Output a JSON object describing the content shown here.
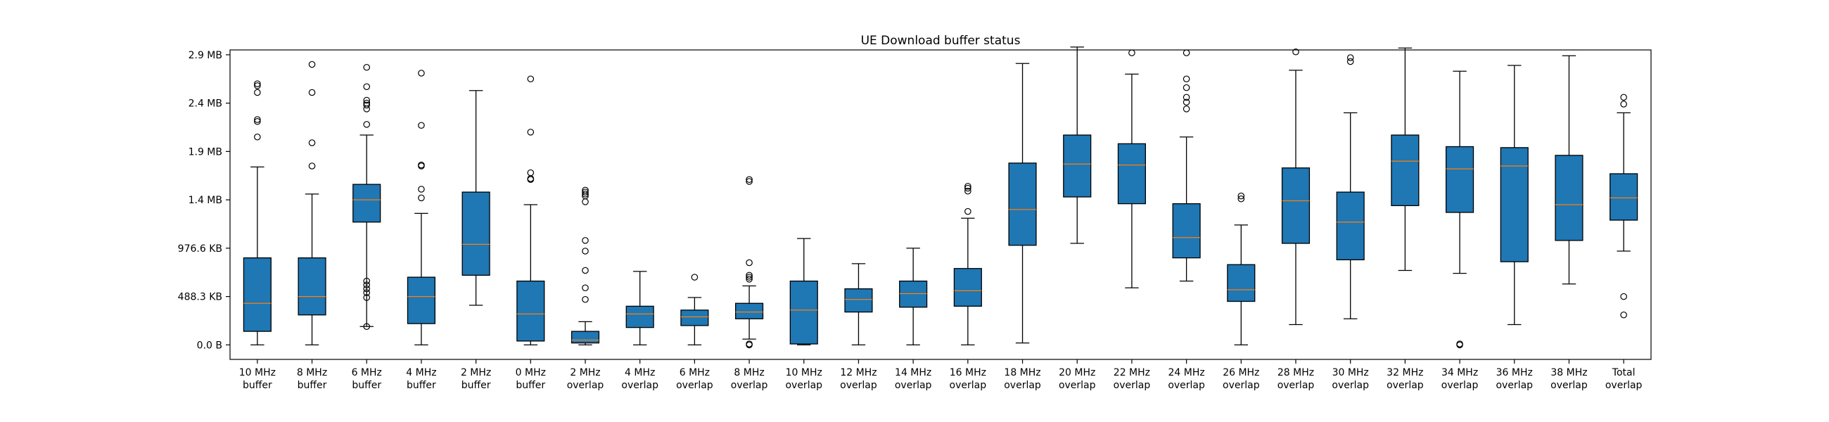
{
  "chart_data": {
    "type": "box",
    "title": "UE Download buffer status",
    "xlabel": "",
    "ylabel": "",
    "ylim": [
      -0.15,
      3.05
    ],
    "y_unit_values_in": "MB",
    "y_ticks": [
      {
        "value": 0.0,
        "label": "0.0 B"
      },
      {
        "value": 0.5,
        "label": "488.3 KB"
      },
      {
        "value": 1.0,
        "label": "976.6 KB"
      },
      {
        "value": 1.5,
        "label": "1.4 MB"
      },
      {
        "value": 2.0,
        "label": "1.9 MB"
      },
      {
        "value": 2.5,
        "label": "2.4 MB"
      },
      {
        "value": 3.0,
        "label": "2.9 MB"
      }
    ],
    "grid": false,
    "box_color": "#1f77b4",
    "median_color": "#ff7f0e",
    "categories": [
      {
        "line1": "10 MHz",
        "line2": "buffer",
        "whislo": 0.0,
        "q1": 0.14,
        "med": 0.43,
        "q3": 0.9,
        "whishi": 1.84,
        "fliers": [
          2.15,
          2.31,
          2.33,
          2.61,
          2.68,
          2.7
        ]
      },
      {
        "line1": "8 MHz",
        "line2": "buffer",
        "whislo": 0.0,
        "q1": 0.31,
        "med": 0.5,
        "q3": 0.9,
        "whishi": 1.56,
        "fliers": [
          1.85,
          2.09,
          2.61,
          2.9
        ]
      },
      {
        "line1": "6 MHz",
        "line2": "buffer",
        "whislo": 0.19,
        "q1": 1.27,
        "med": 1.5,
        "q3": 1.66,
        "whishi": 2.17,
        "fliers": [
          0.19,
          0.49,
          0.54,
          0.58,
          0.62,
          0.66,
          2.28,
          2.44,
          2.48,
          2.5,
          2.53,
          2.67,
          2.87
        ]
      },
      {
        "line1": "4 MHz",
        "line2": "buffer",
        "whislo": 0.0,
        "q1": 0.22,
        "med": 0.5,
        "q3": 0.7,
        "whishi": 1.36,
        "fliers": [
          1.52,
          1.61,
          1.85,
          1.86,
          2.27,
          2.81
        ]
      },
      {
        "line1": "2 MHz",
        "line2": "buffer",
        "whislo": 0.41,
        "q1": 0.72,
        "med": 1.04,
        "q3": 1.58,
        "whishi": 2.63,
        "fliers": []
      },
      {
        "line1": "0 MHz",
        "line2": "buffer",
        "whislo": 0.0,
        "q1": 0.04,
        "med": 0.32,
        "q3": 0.66,
        "whishi": 1.45,
        "fliers": [
          1.71,
          1.72,
          1.78,
          2.2,
          2.75
        ]
      },
      {
        "line1": "2 MHz",
        "line2": "overlap",
        "whislo": 0.0,
        "q1": 0.02,
        "med": 0.05,
        "q3": 0.14,
        "whishi": 0.24,
        "fliers": [
          0.47,
          0.59,
          0.77,
          0.97,
          1.08,
          1.48,
          1.54,
          1.56,
          1.58,
          1.6
        ]
      },
      {
        "line1": "4 MHz",
        "line2": "overlap",
        "whislo": 0.0,
        "q1": 0.18,
        "med": 0.32,
        "q3": 0.4,
        "whishi": 0.76,
        "fliers": []
      },
      {
        "line1": "6 MHz",
        "line2": "overlap",
        "whislo": 0.0,
        "q1": 0.2,
        "med": 0.29,
        "q3": 0.36,
        "whishi": 0.49,
        "fliers": [
          0.7
        ]
      },
      {
        "line1": "8 MHz",
        "line2": "overlap",
        "whislo": 0.06,
        "q1": 0.27,
        "med": 0.34,
        "q3": 0.43,
        "whishi": 0.61,
        "fliers": [
          0.0,
          0.01,
          0.68,
          0.7,
          0.72,
          0.85,
          1.69,
          1.71
        ]
      },
      {
        "line1": "10 MHz",
        "line2": "overlap",
        "whislo": 0.0,
        "q1": 0.01,
        "med": 0.36,
        "q3": 0.66,
        "whishi": 1.1,
        "fliers": []
      },
      {
        "line1": "12 MHz",
        "line2": "overlap",
        "whislo": 0.0,
        "q1": 0.34,
        "med": 0.47,
        "q3": 0.58,
        "whishi": 0.84,
        "fliers": []
      },
      {
        "line1": "14 MHz",
        "line2": "overlap",
        "whislo": 0.0,
        "q1": 0.39,
        "med": 0.53,
        "q3": 0.66,
        "whishi": 1.0,
        "fliers": []
      },
      {
        "line1": "16 MHz",
        "line2": "overlap",
        "whislo": 0.0,
        "q1": 0.4,
        "med": 0.56,
        "q3": 0.79,
        "whishi": 1.31,
        "fliers": [
          1.38,
          1.59,
          1.62,
          1.64
        ]
      },
      {
        "line1": "18 MHz",
        "line2": "overlap",
        "whislo": 0.02,
        "q1": 1.03,
        "med": 1.4,
        "q3": 1.88,
        "whishi": 2.91,
        "fliers": []
      },
      {
        "line1": "20 MHz",
        "line2": "overlap",
        "whislo": 1.05,
        "q1": 1.53,
        "med": 1.87,
        "q3": 2.17,
        "whishi": 3.08,
        "fliers": []
      },
      {
        "line1": "22 MHz",
        "line2": "overlap",
        "whislo": 0.59,
        "q1": 1.46,
        "med": 1.86,
        "q3": 2.08,
        "whishi": 2.8,
        "fliers": [
          3.02
        ]
      },
      {
        "line1": "24 MHz",
        "line2": "overlap",
        "whislo": 0.66,
        "q1": 0.9,
        "med": 1.11,
        "q3": 1.46,
        "whishi": 2.15,
        "fliers": [
          2.44,
          2.51,
          2.56,
          2.66,
          2.75,
          3.02
        ]
      },
      {
        "line1": "26 MHz",
        "line2": "overlap",
        "whislo": 0.0,
        "q1": 0.45,
        "med": 0.57,
        "q3": 0.83,
        "whishi": 1.24,
        "fliers": [
          1.51,
          1.54
        ]
      },
      {
        "line1": "28 MHz",
        "line2": "overlap",
        "whislo": 0.21,
        "q1": 1.05,
        "med": 1.49,
        "q3": 1.83,
        "whishi": 2.84,
        "fliers": [
          3.03
        ]
      },
      {
        "line1": "30 MHz",
        "line2": "overlap",
        "whislo": 0.27,
        "q1": 0.88,
        "med": 1.27,
        "q3": 1.58,
        "whishi": 2.4,
        "fliers": [
          2.93,
          2.97
        ]
      },
      {
        "line1": "32 MHz",
        "line2": "overlap",
        "whislo": 0.77,
        "q1": 1.44,
        "med": 1.9,
        "q3": 2.17,
        "whishi": 3.07,
        "fliers": []
      },
      {
        "line1": "34 MHz",
        "line2": "overlap",
        "whislo": 0.74,
        "q1": 1.37,
        "med": 1.82,
        "q3": 2.05,
        "whishi": 2.83,
        "fliers": [
          0.0,
          0.01
        ]
      },
      {
        "line1": "36 MHz",
        "line2": "overlap",
        "whislo": 0.21,
        "q1": 0.86,
        "med": 1.85,
        "q3": 2.04,
        "whishi": 2.89,
        "fliers": []
      },
      {
        "line1": "38 MHz",
        "line2": "overlap",
        "whislo": 0.63,
        "q1": 1.08,
        "med": 1.45,
        "q3": 1.96,
        "whishi": 2.99,
        "fliers": []
      },
      {
        "line1": "Total",
        "line2": "overlap",
        "whislo": 0.97,
        "q1": 1.29,
        "med": 1.52,
        "q3": 1.77,
        "whishi": 2.4,
        "fliers": [
          0.31,
          0.5,
          2.49,
          2.56
        ]
      }
    ]
  }
}
